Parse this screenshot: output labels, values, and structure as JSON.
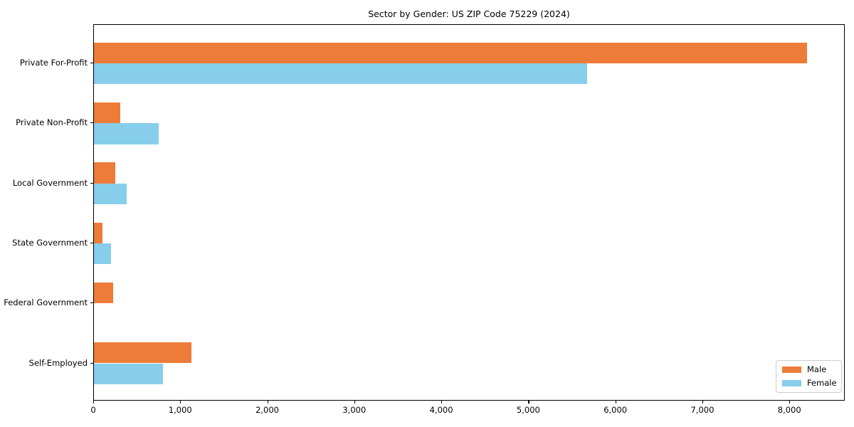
{
  "figure": {
    "background": "#ffffff"
  },
  "chart_data": {
    "type": "bar",
    "orientation": "horizontal",
    "title": "Sector by Gender: US ZIP Code 75229 (2024)",
    "categories": [
      "Private For-Profit",
      "Private Non-Profit",
      "Local Government",
      "State Government",
      "Federal Government",
      "Self-Employed"
    ],
    "series": [
      {
        "name": "Male",
        "color": "#ED7C39",
        "values": [
          8210,
          305,
          245,
          95,
          220,
          1120
        ]
      },
      {
        "name": "Female",
        "color": "#87CEEB",
        "values": [
          5680,
          745,
          380,
          195,
          0,
          795
        ]
      }
    ],
    "xlim": [
      0,
      8636
    ],
    "xticks": [
      0,
      1000,
      2000,
      3000,
      4000,
      5000,
      6000,
      7000,
      8000
    ],
    "xtick_labels": [
      "0",
      "1,000",
      "2,000",
      "3,000",
      "4,000",
      "5,000",
      "6,000",
      "7,000",
      "8,000"
    ],
    "ylabel": "",
    "xlabel": "",
    "grid": false,
    "legend_position": "lower right",
    "colors": {
      "axis": "#000000",
      "legend_border": "#cccccc",
      "plot_background": "#ffffff"
    }
  }
}
